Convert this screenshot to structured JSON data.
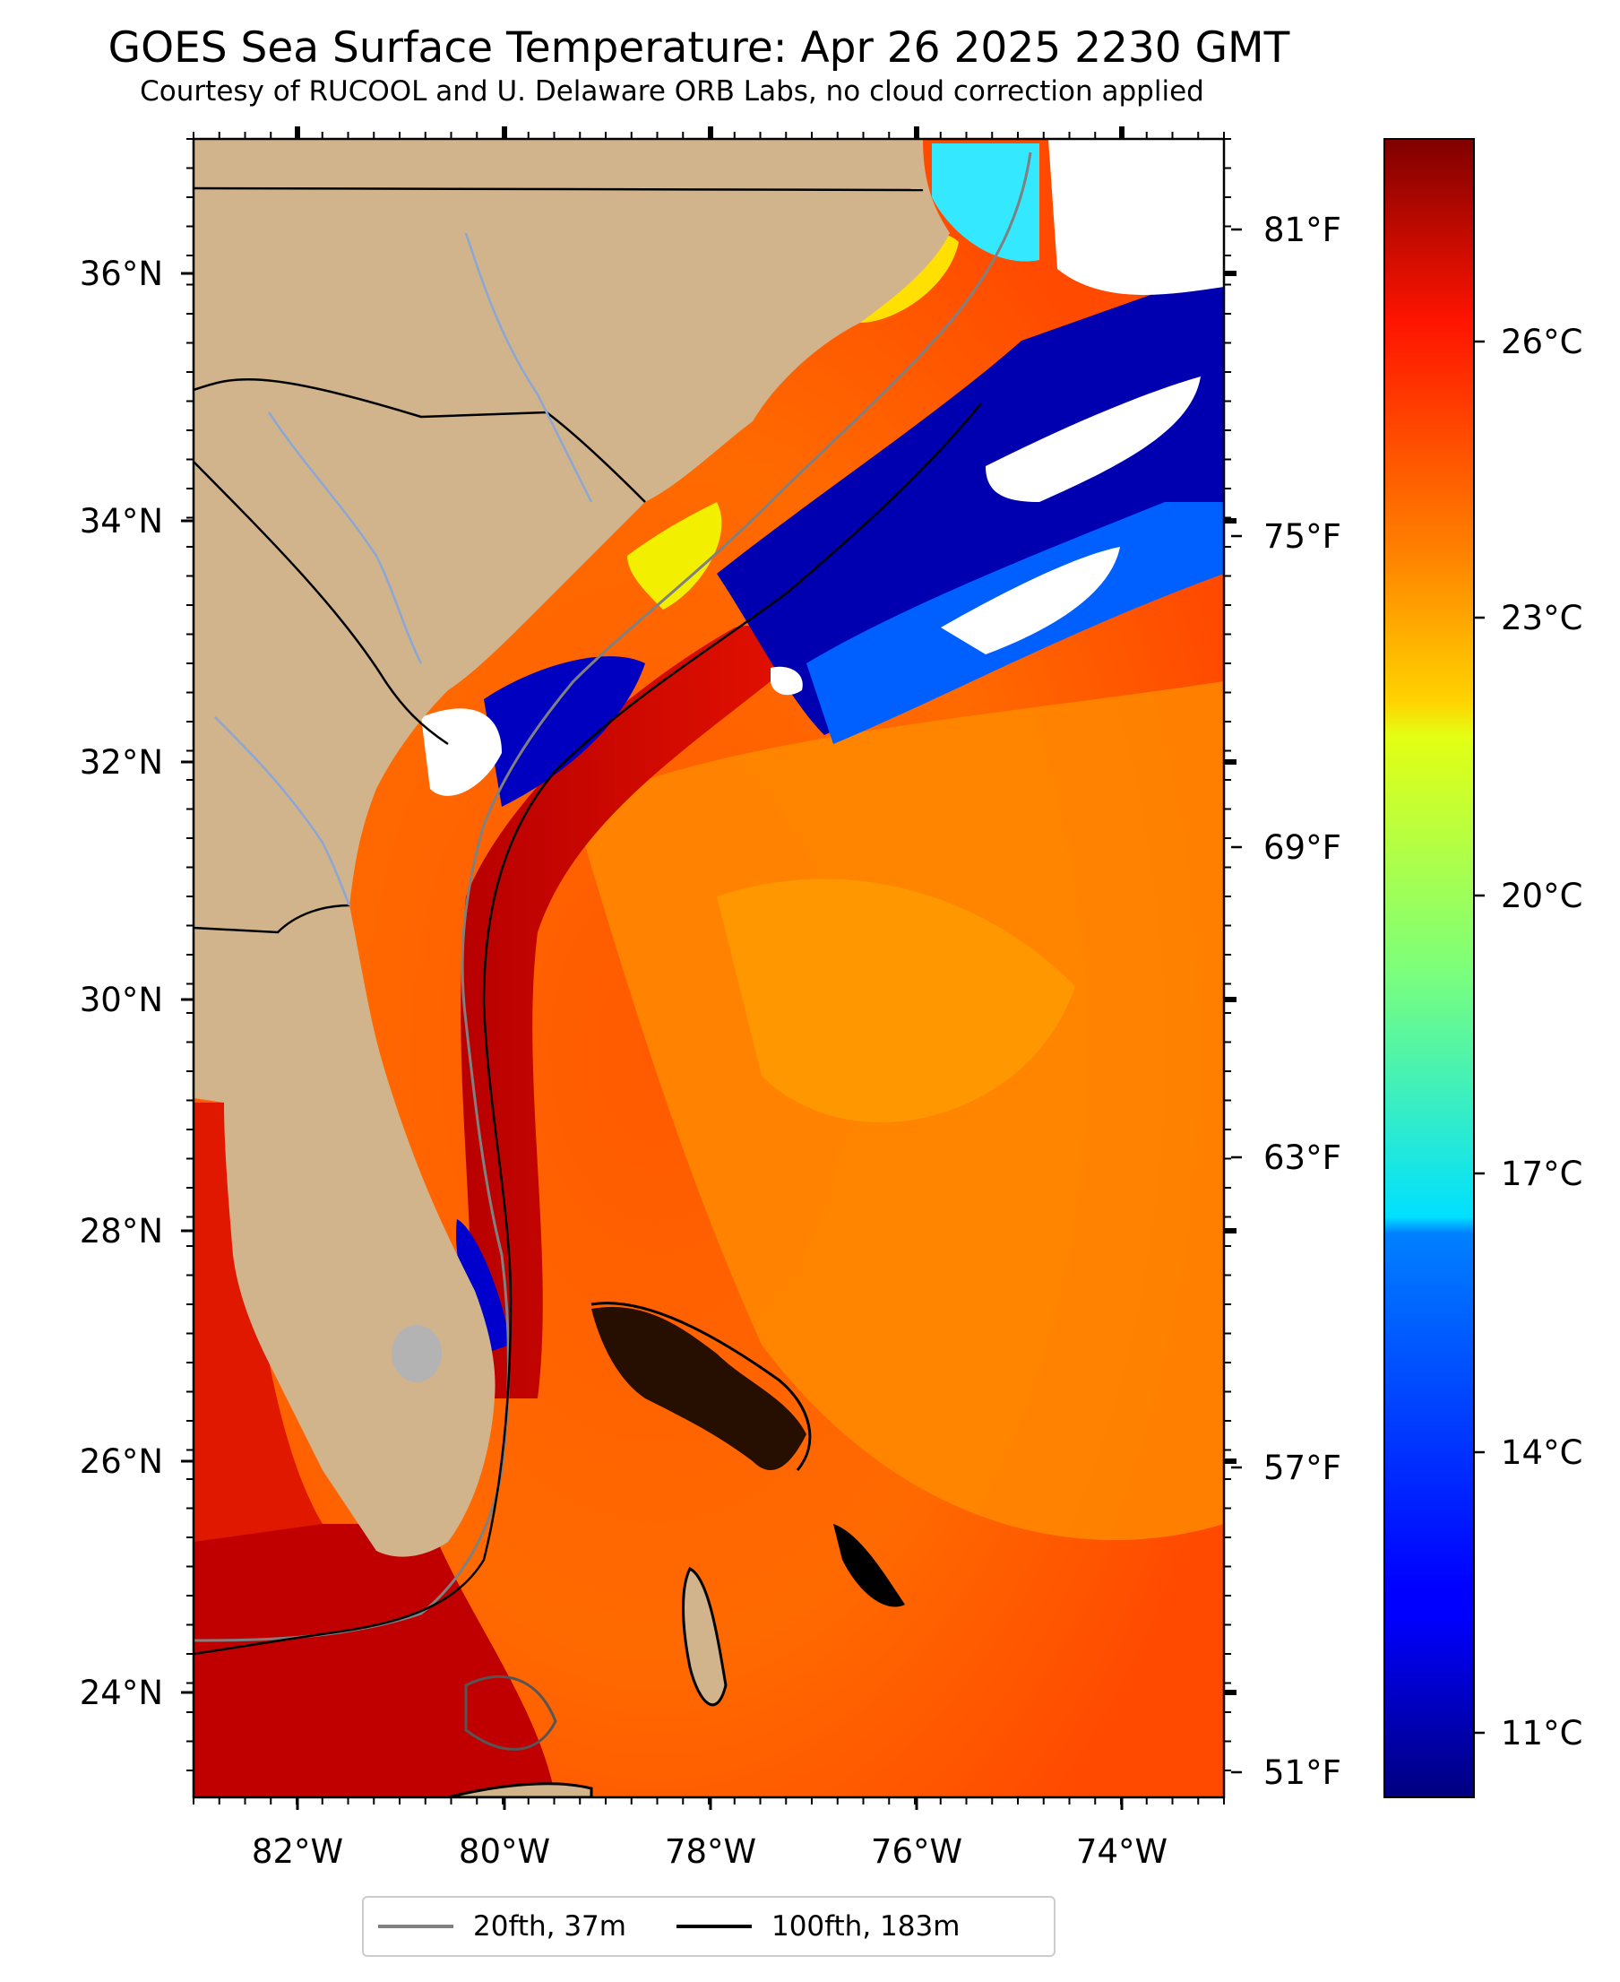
{
  "title": "GOES Sea Surface Temperature: Apr 26 2025 2230 GMT",
  "subtitle": "Courtesy of RUCOOL and U. Delaware ORB Labs, no cloud correction applied",
  "map": {
    "extent": {
      "lon": [
        -83,
        -73
      ],
      "lat": [
        23.1,
        37.2
      ]
    },
    "lat_labels": [
      "24°N",
      "26°N",
      "28°N",
      "30°N",
      "32°N",
      "34°N",
      "36°N"
    ],
    "lon_labels": [
      "82°W",
      "80°W",
      "78°W",
      "76°W",
      "74°W"
    ],
    "fahrenheit_labels": [
      "81°F",
      "75°F",
      "69°F",
      "63°F",
      "57°F",
      "51°F"
    ],
    "colors": {
      "land": "#d2b48c",
      "cloud": "#ffffff",
      "state_border": "#000000",
      "river": "#8ba7d6",
      "contour_20fth": "#808080",
      "contour_100fth": "#000000"
    }
  },
  "colorbar": {
    "range_c": [
      9.8,
      28.3
    ],
    "celsius_labels": [
      "11°C",
      "14°C",
      "17°C",
      "20°C",
      "23°C",
      "26°C"
    ],
    "colormap": "jet"
  },
  "legend": {
    "items": [
      {
        "label": "20fth, 37m",
        "color": "#808080"
      },
      {
        "label": "100fth, 183m",
        "color": "#000000"
      }
    ]
  }
}
